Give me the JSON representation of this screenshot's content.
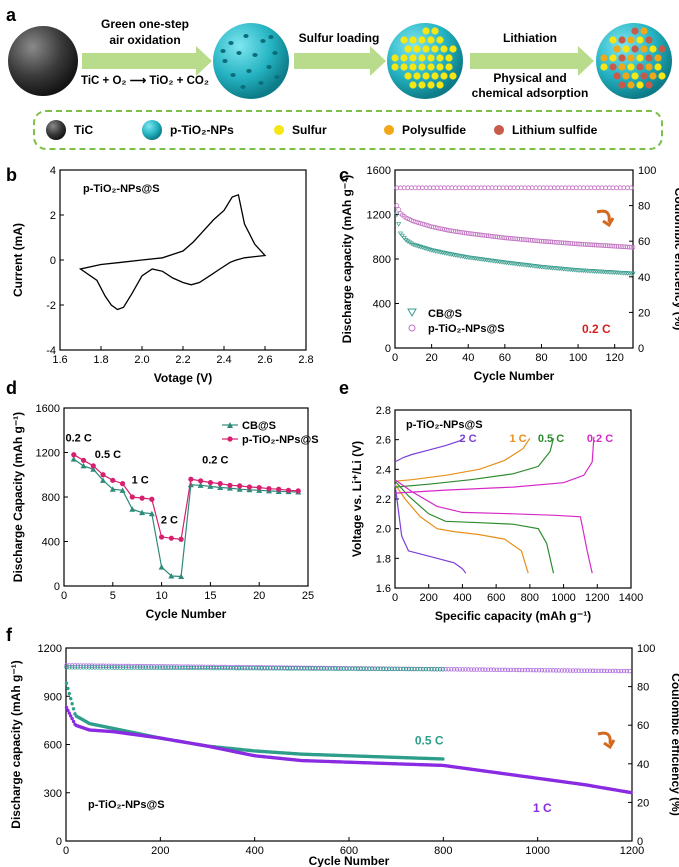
{
  "panel_a": {
    "label": "a",
    "step1": {
      "line1": "Green one-step",
      "line2": "air oxidation",
      "reaction": "TiC + O₂ ⟶ TiO₂ + CO₂"
    },
    "step2": {
      "line1": "Sulfur loading"
    },
    "step3": {
      "line1": "Lithiation",
      "line2": "Physical and",
      "line3": "chemical adsorption"
    },
    "legend": [
      {
        "label": "TiC",
        "icon": "tic-sphere-icon",
        "color": "#3a3a3a"
      },
      {
        "label": "p-TiO₂-NPs",
        "icon": "tio2-sphere-icon",
        "color": "#2bb8c6"
      },
      {
        "label": "Sulfur",
        "icon": "sulfur-dot-icon",
        "color": "#f5e614"
      },
      {
        "label": "Polysulfide",
        "icon": "polysulfide-dot-icon",
        "color": "#f0a818"
      },
      {
        "label": "Lithium sulfide",
        "icon": "lithium-sulfide-dot-icon",
        "color": "#c85a4a"
      }
    ],
    "colors": {
      "arrow": "#b8dc8c",
      "dashed_border": "#7cc04a"
    }
  },
  "chart_data": [
    {
      "panel": "b",
      "type": "line",
      "annotation": "p-TiO₂-NPs@S",
      "xlabel": "Votage (V)",
      "ylabel": "Current (mA)",
      "xlim": [
        1.6,
        2.8
      ],
      "ylim": [
        -4,
        4
      ],
      "xticks": [
        "1.6",
        "1.8",
        "2.0",
        "2.2",
        "2.4",
        "2.6",
        "2.8"
      ],
      "yticks": [
        "-4",
        "-2",
        "0",
        "2",
        "4"
      ],
      "series": [
        {
          "x": [
            1.7,
            1.78,
            1.82,
            1.85,
            1.88,
            1.91,
            1.95,
            2.0,
            2.05,
            2.1,
            2.15,
            2.2,
            2.24,
            2.28,
            2.33,
            2.38,
            2.43,
            2.46,
            2.5,
            2.55,
            2.6,
            2.55,
            2.5,
            2.47,
            2.44,
            2.4,
            2.35,
            2.3,
            2.25,
            2.2,
            2.1,
            2.0,
            1.9,
            1.8,
            1.7
          ],
          "y": [
            -0.4,
            -0.9,
            -1.6,
            -2.0,
            -2.2,
            -2.1,
            -1.5,
            -0.7,
            -0.4,
            -0.5,
            -0.8,
            -1.0,
            -1.1,
            -1.0,
            -0.7,
            -0.4,
            -0.1,
            0.0,
            0.1,
            0.15,
            0.2,
            0.7,
            1.6,
            2.9,
            2.8,
            2.2,
            1.8,
            1.3,
            0.8,
            0.4,
            0.1,
            0.0,
            -0.1,
            -0.2,
            -0.4
          ],
          "color": "#000000"
        }
      ]
    },
    {
      "panel": "c",
      "type": "scatter",
      "xlabel": "Cycle Number",
      "ylabel": "Discharge capacity (mAh g⁻¹)",
      "y2label": "Coulombic efficiency (%)",
      "xlim": [
        0,
        130
      ],
      "ylim": [
        0,
        1600
      ],
      "y2lim": [
        0,
        100
      ],
      "xticks": [
        "0",
        "20",
        "40",
        "60",
        "80",
        "100",
        "120"
      ],
      "yticks": [
        "0",
        "400",
        "800",
        "1200",
        "1600"
      ],
      "y2ticks": [
        "0",
        "20",
        "40",
        "60",
        "80",
        "100"
      ],
      "annotation": "0.2 C",
      "annotation_color": "#d62020",
      "series": [
        {
          "name": "CB@S",
          "marker": "triangle",
          "color": "#3a9e8f",
          "x": [
            1,
            3,
            6,
            10,
            20,
            30,
            40,
            60,
            80,
            100,
            120,
            130
          ],
          "y": [
            1200,
            1030,
            970,
            930,
            880,
            845,
            815,
            770,
            730,
            700,
            680,
            670
          ]
        },
        {
          "name": "p-TiO₂-NPs@S",
          "marker": "circle",
          "color": "#c070c0",
          "x": [
            1,
            3,
            6,
            10,
            20,
            30,
            40,
            60,
            80,
            100,
            120,
            130
          ],
          "y": [
            1280,
            1210,
            1170,
            1140,
            1090,
            1055,
            1030,
            990,
            960,
            935,
            915,
            905
          ]
        },
        {
          "name": "CE",
          "axis": "right",
          "marker": "circle",
          "color": "#c070c0",
          "x": [
            1,
            130
          ],
          "y": [
            90,
            90
          ]
        }
      ]
    },
    {
      "panel": "d",
      "type": "line",
      "xlabel": "Cycle Number",
      "ylabel": "Discharge Capacity (mAh g⁻¹)",
      "xlim": [
        0,
        25
      ],
      "ylim": [
        0,
        1600
      ],
      "xticks": [
        "0",
        "5",
        "10",
        "15",
        "20",
        "25"
      ],
      "yticks": [
        "0",
        "400",
        "800",
        "1200",
        "1600"
      ],
      "annotations": [
        "0.2 C",
        "0.5 C",
        "1 C",
        "2 C",
        "0.2 C"
      ],
      "series": [
        {
          "name": "CB@S",
          "marker": "triangle",
          "color": "#2e8b7a",
          "x": [
            1,
            2,
            3,
            4,
            5,
            6,
            7,
            8,
            9,
            10,
            11,
            12,
            13,
            14,
            15,
            16,
            17,
            18,
            19,
            20,
            21,
            22,
            23,
            24
          ],
          "y": [
            1140,
            1080,
            1050,
            950,
            870,
            860,
            690,
            660,
            650,
            170,
            90,
            85,
            910,
            905,
            895,
            885,
            880,
            870,
            865,
            860,
            855,
            850,
            848,
            845
          ]
        },
        {
          "name": "p-TiO₂-NPs@S",
          "marker": "circle",
          "color": "#d61f6e",
          "x": [
            1,
            2,
            3,
            4,
            5,
            6,
            7,
            8,
            9,
            10,
            11,
            12,
            13,
            14,
            15,
            16,
            17,
            18,
            19,
            20,
            21,
            22,
            23,
            24
          ],
          "y": [
            1180,
            1130,
            1080,
            1000,
            950,
            920,
            800,
            790,
            780,
            440,
            430,
            420,
            960,
            945,
            930,
            920,
            905,
            900,
            890,
            885,
            875,
            870,
            860,
            855
          ]
        }
      ]
    },
    {
      "panel": "e",
      "type": "line",
      "annotation": "p-TiO₂-NPs@S",
      "xlabel": "Specific capacity (mAh g⁻¹)",
      "ylabel": "Voltage vs. Li⁺/Li (V)",
      "xlim": [
        0,
        1400
      ],
      "ylim": [
        1.6,
        2.8
      ],
      "xticks": [
        "0",
        "200",
        "400",
        "600",
        "800",
        "1000",
        "1200",
        "1400"
      ],
      "yticks": [
        "1.6",
        "1.8",
        "2.0",
        "2.2",
        "2.4",
        "2.6",
        "2.8"
      ],
      "series": [
        {
          "name": "2 C",
          "color": "#7b3fd6",
          "discharge": {
            "x": [
              0,
              40,
              80,
              150,
              250,
              350,
              400,
              420
            ],
            "y": [
              2.3,
              1.95,
              1.85,
              1.83,
              1.8,
              1.77,
              1.73,
              1.7
            ]
          },
          "charge": {
            "x": [
              0,
              50,
              100,
              200,
              300,
              380,
              410
            ],
            "y": [
              2.45,
              2.48,
              2.5,
              2.53,
              2.56,
              2.59,
              2.61
            ]
          }
        },
        {
          "name": "1 C",
          "color": "#e8901a",
          "discharge": {
            "x": [
              0,
              60,
              150,
              250,
              350,
              500,
              650,
              750,
              790
            ],
            "y": [
              2.3,
              2.2,
              2.08,
              2.0,
              1.98,
              1.96,
              1.93,
              1.85,
              1.7
            ]
          },
          "charge": {
            "x": [
              0,
              100,
              300,
              500,
              650,
              760,
              800
            ],
            "y": [
              2.32,
              2.33,
              2.36,
              2.4,
              2.46,
              2.54,
              2.61
            ]
          }
        },
        {
          "name": "0.5 C",
          "color": "#2e8b2e",
          "discharge": {
            "x": [
              0,
              80,
              200,
              300,
              500,
              700,
              850,
              900,
              940
            ],
            "y": [
              2.32,
              2.22,
              2.1,
              2.05,
              2.04,
              2.03,
              2.0,
              1.9,
              1.7
            ]
          },
          "charge": {
            "x": [
              0,
              200,
              450,
              700,
              850,
              920,
              940
            ],
            "y": [
              2.28,
              2.3,
              2.33,
              2.37,
              2.42,
              2.52,
              2.61
            ]
          }
        },
        {
          "name": "0.2 C",
          "color": "#d629c8",
          "discharge": {
            "x": [
              0,
              100,
              250,
              400,
              700,
              950,
              1100,
              1140,
              1170
            ],
            "y": [
              2.33,
              2.25,
              2.15,
              2.11,
              2.1,
              2.09,
              2.08,
              1.85,
              1.7
            ]
          },
          "charge": {
            "x": [
              0,
              300,
              700,
              1000,
              1120,
              1170,
              1180
            ],
            "y": [
              2.24,
              2.26,
              2.28,
              2.31,
              2.36,
              2.45,
              2.62
            ]
          }
        }
      ]
    },
    {
      "panel": "f",
      "type": "scatter",
      "annotation": "p-TiO₂-NPs@S",
      "xlabel": "Cycle Number",
      "ylabel": "Discharge capacity (mAh g⁻¹)",
      "y2label": "Coulombic efficiency (%)",
      "xlim": [
        0,
        1200
      ],
      "ylim": [
        0,
        1200
      ],
      "y2lim": [
        0,
        100
      ],
      "xticks": [
        "0",
        "200",
        "400",
        "600",
        "800",
        "1000",
        "1200"
      ],
      "yticks": [
        "0",
        "300",
        "600",
        "900",
        "1200"
      ],
      "y2ticks": [
        "0",
        "20",
        "40",
        "60",
        "80",
        "100"
      ],
      "series": [
        {
          "name": "0.5 C",
          "color": "#2e9e8a",
          "x": [
            1,
            20,
            50,
            100,
            200,
            300,
            400,
            500,
            600,
            700,
            800
          ],
          "y": [
            980,
            780,
            730,
            700,
            640,
            590,
            560,
            540,
            530,
            520,
            510
          ]
        },
        {
          "name": "1 C",
          "color": "#8a2be2",
          "x": [
            1,
            20,
            50,
            100,
            200,
            300,
            400,
            500,
            600,
            700,
            800,
            900,
            1000,
            1100,
            1200
          ],
          "y": [
            830,
            720,
            690,
            680,
            640,
            590,
            530,
            500,
            490,
            480,
            470,
            430,
            390,
            350,
            300
          ]
        },
        {
          "name": "CE 0.5 C",
          "axis": "right",
          "color": "#2e9e8a",
          "x": [
            1,
            800
          ],
          "y": [
            90,
            89
          ]
        },
        {
          "name": "CE 1 C",
          "axis": "right",
          "color": "#b070e0",
          "x": [
            1,
            1200
          ],
          "y": [
            91,
            88
          ]
        }
      ]
    }
  ]
}
